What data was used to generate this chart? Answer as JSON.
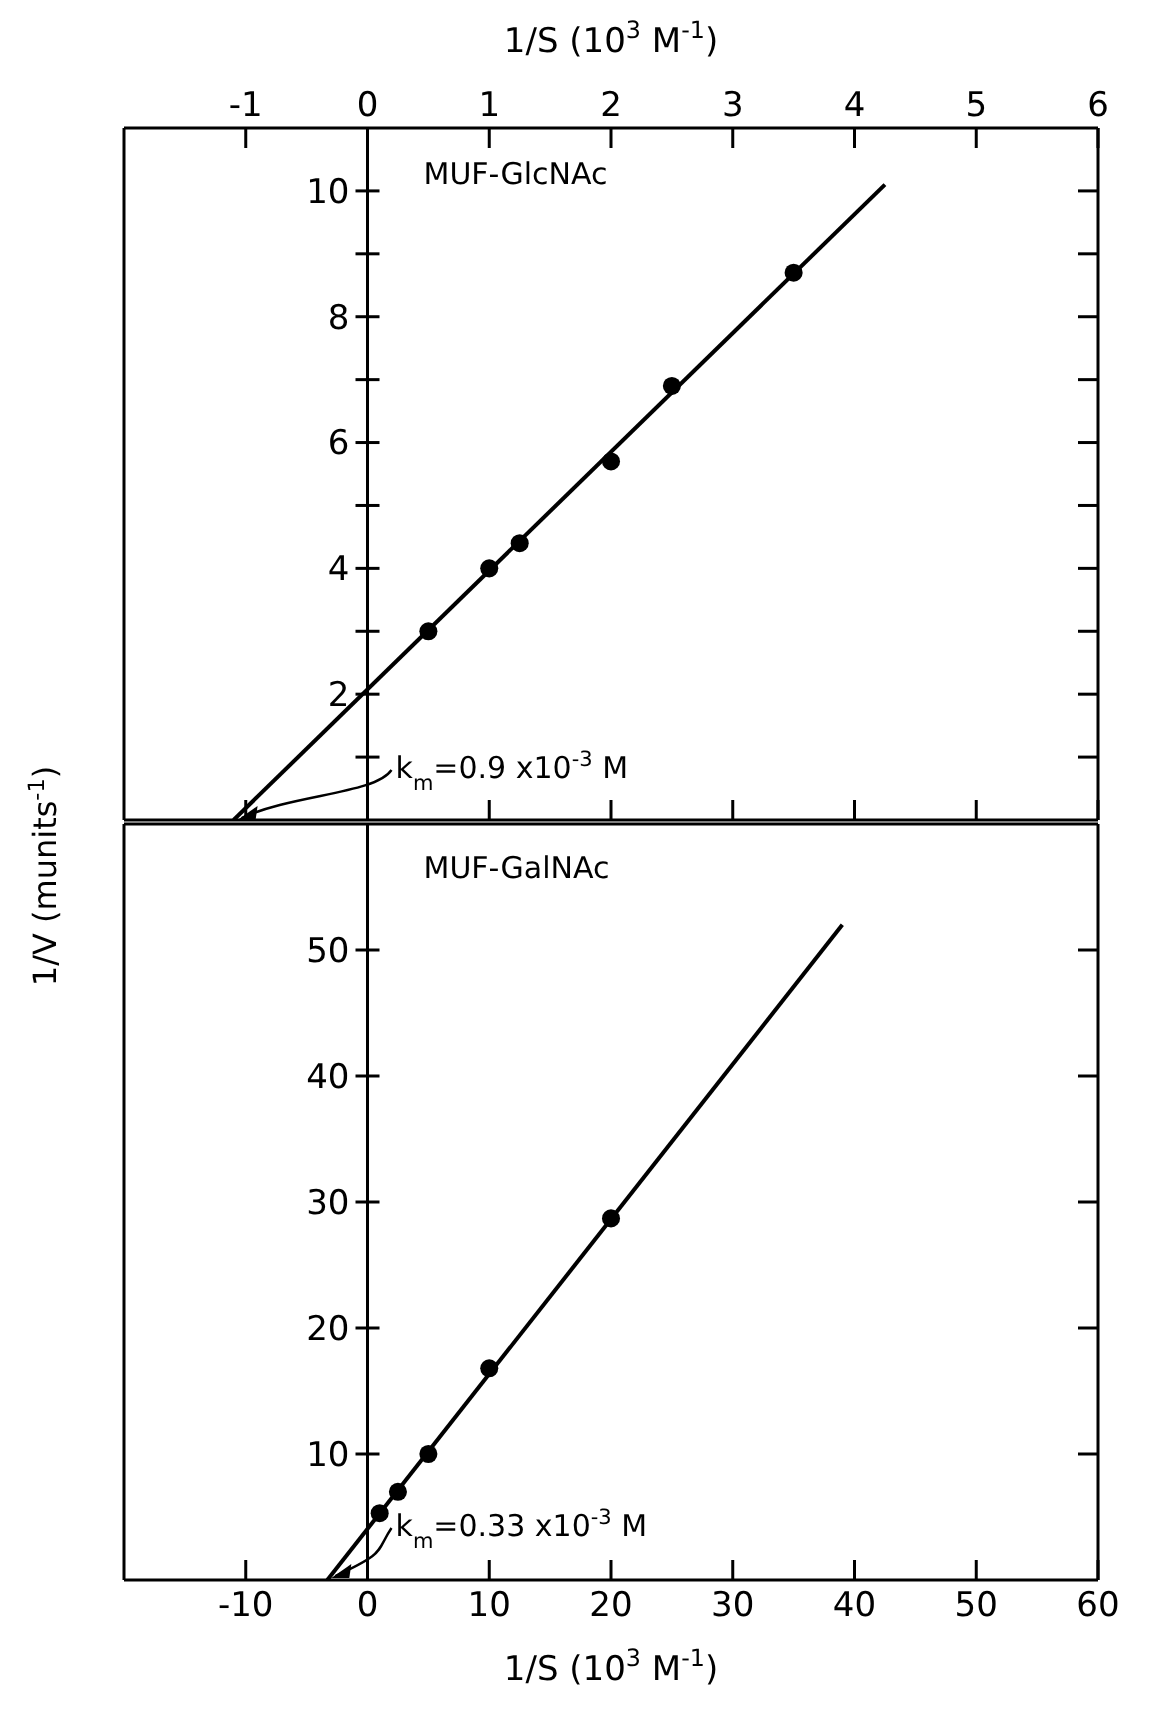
{
  "chart_data": [
    {
      "type": "scatter",
      "title": "MUF-GlcNAc",
      "xlabel": "1/S (10$^{3}$ M$^{-1}$)",
      "ylabel": "1/V (munits$^{-1}$)",
      "xlim": [
        -2,
        6
      ],
      "xticks": [
        -1,
        0,
        1,
        2,
        3,
        4,
        5,
        6
      ],
      "ylim": [
        0,
        11
      ],
      "yticks": [
        {
          "value": 1,
          "label": null
        },
        2,
        {
          "value": 3,
          "label": null
        },
        4,
        {
          "value": 5,
          "label": null
        },
        6,
        {
          "value": 7,
          "label": null
        },
        8,
        {
          "value": 9,
          "label": null
        },
        10
      ],
      "marker": "circle",
      "annotations": [
        {
          "text": "k$_{m}$=0.9 x10$^{-3}$ M",
          "x": -1.1,
          "y": 0
        }
      ],
      "series": [
        {
          "color": "#000000",
          "x": [
            0.5,
            1,
            1.25,
            2,
            2.5,
            3.5
          ],
          "values": [
            3,
            4,
            4.4,
            5.7,
            6.9,
            8.7
          ]
        },
        {
          "type": "line",
          "marker": "none",
          "color": "#000000",
          "x": [
            -1.1,
            4.25
          ],
          "values": [
            0,
            10.1
          ]
        }
      ]
    },
    {
      "type": "scatter",
      "title": "MUF-GalNAc",
      "xlabel": "1/S (10$^{3}$ M$^{-1}$)",
      "xlim": [
        -20,
        60
      ],
      "xticks": [
        -10,
        0,
        10,
        20,
        30,
        40,
        50,
        60
      ],
      "ylim": [
        0,
        60
      ],
      "yticks": [
        10,
        20,
        30,
        40,
        50
      ],
      "marker": "circle",
      "annotations": [
        {
          "text": "k$_{m}$=0.33 x10$^{-3}$ M",
          "x": -3.3,
          "y": 0
        }
      ],
      "series": [
        {
          "color": "#000000",
          "x": [
            1,
            2.5,
            5,
            10,
            20
          ],
          "values": [
            5.3,
            7,
            10,
            16.8,
            28.7
          ]
        },
        {
          "type": "line",
          "marker": "none",
          "color": "#000000",
          "x": [
            -3.3,
            39
          ],
          "values": [
            0,
            52
          ]
        }
      ]
    }
  ]
}
